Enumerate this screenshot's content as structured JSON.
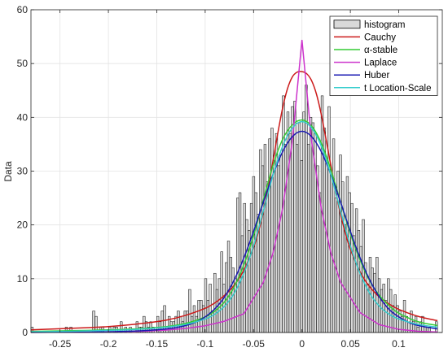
{
  "chart_data": {
    "type": "bar",
    "ylabel": "Data",
    "xlabel": "",
    "title": "",
    "xlim": [
      -0.28,
      0.145
    ],
    "ylim": [
      0,
      60
    ],
    "x_ticks": [
      -0.25,
      -0.2,
      -0.15,
      -0.1,
      -0.05,
      0,
      0.05,
      0.1
    ],
    "x_tick_labels": [
      "-0.25",
      "-0.2",
      "-0.15",
      "-0.1",
      "-0.05",
      "0",
      "0.05",
      "0.1"
    ],
    "y_ticks": [
      0,
      10,
      20,
      30,
      40,
      50,
      60
    ],
    "y_tick_labels": [
      "0",
      "10",
      "20",
      "30",
      "40",
      "50",
      "60"
    ],
    "grid": true,
    "legend_position": "top-right",
    "histogram": {
      "name": "histogram",
      "color": "#d9d9d9",
      "edge_color": "#000000",
      "bin_width": 0.00236,
      "bin_centers": [
        -0.2788,
        -0.2765,
        -0.2741,
        -0.2717,
        -0.2694,
        -0.267,
        -0.2647,
        -0.2623,
        -0.2599,
        -0.2576,
        -0.2552,
        -0.2529,
        -0.2505,
        -0.2481,
        -0.2458,
        -0.2434,
        -0.2411,
        -0.2387,
        -0.2363,
        -0.234,
        -0.2316,
        -0.2293,
        -0.2269,
        -0.2245,
        -0.2222,
        -0.2198,
        -0.2175,
        -0.2151,
        -0.2127,
        -0.2104,
        -0.208,
        -0.2057,
        -0.2033,
        -0.2009,
        -0.1986,
        -0.1962,
        -0.1939,
        -0.1915,
        -0.1891,
        -0.1868,
        -0.1844,
        -0.1821,
        -0.1797,
        -0.1773,
        -0.175,
        -0.1726,
        -0.1703,
        -0.1679,
        -0.1655,
        -0.1632,
        -0.1608,
        -0.1585,
        -0.1561,
        -0.1537,
        -0.1514,
        -0.149,
        -0.1467,
        -0.1443,
        -0.1419,
        -0.1396,
        -0.1372,
        -0.1349,
        -0.1325,
        -0.1301,
        -0.1278,
        -0.1254,
        -0.1231,
        -0.1207,
        -0.1183,
        -0.116,
        -0.1136,
        -0.1113,
        -0.1089,
        -0.1065,
        -0.1042,
        -0.1018,
        -0.0995,
        -0.0971,
        -0.0947,
        -0.0924,
        -0.09,
        -0.0877,
        -0.0853,
        -0.0829,
        -0.0806,
        -0.0782,
        -0.0759,
        -0.0735,
        -0.0711,
        -0.0688,
        -0.0664,
        -0.0641,
        -0.0617,
        -0.0593,
        -0.057,
        -0.0546,
        -0.0523,
        -0.0499,
        -0.0475,
        -0.0452,
        -0.0428,
        -0.0405,
        -0.0381,
        -0.0357,
        -0.0334,
        -0.031,
        -0.0287,
        -0.0263,
        -0.0239,
        -0.0216,
        -0.0192,
        -0.0169,
        -0.0145,
        -0.0121,
        -0.0098,
        -0.0074,
        -0.0051,
        -0.0027,
        -0.0003,
        0.002,
        0.0044,
        0.0067,
        0.0091,
        0.0115,
        0.0138,
        0.0162,
        0.0185,
        0.0209,
        0.0233,
        0.0256,
        0.028,
        0.0303,
        0.0327,
        0.0351,
        0.0374,
        0.0398,
        0.0421,
        0.0445,
        0.0469,
        0.0492,
        0.0516,
        0.0539,
        0.0563,
        0.0587,
        0.061,
        0.0634,
        0.0657,
        0.0681,
        0.0705,
        0.0728,
        0.0752,
        0.0775,
        0.0799,
        0.0823,
        0.0846,
        0.087,
        0.0893,
        0.0917,
        0.0941,
        0.0964,
        0.0988,
        0.1011,
        0.1035,
        0.1059,
        0.1082,
        0.1106,
        0.1129,
        0.1153,
        0.1177,
        0.12,
        0.1224,
        0.1247,
        0.1271,
        0.1295,
        0.1318,
        0.1342,
        0.1365,
        0.1389,
        0.1413,
        0.1436
      ],
      "counts": [
        1,
        0,
        0,
        0,
        0,
        0,
        0,
        0,
        0,
        0,
        0,
        0,
        0,
        0,
        0,
        1,
        0,
        1,
        0,
        0,
        0,
        0,
        0,
        0,
        0,
        0,
        0,
        4,
        3,
        0,
        1,
        1,
        0,
        0,
        1,
        0,
        1,
        1,
        0,
        2,
        0,
        1,
        0,
        1,
        0,
        0,
        2,
        1,
        1,
        3,
        2,
        1,
        2,
        1,
        0,
        3,
        2,
        4,
        5,
        1,
        3,
        2,
        2,
        3,
        4,
        3,
        2,
        4,
        4,
        8,
        3,
        5,
        3,
        6,
        6,
        5,
        10,
        6,
        9,
        4,
        11,
        8,
        10,
        15,
        9,
        13,
        17,
        14,
        12,
        10,
        25,
        26,
        18,
        24,
        21,
        19,
        24,
        29,
        26,
        22,
        34,
        31,
        35,
        28,
        36,
        38,
        32,
        37,
        31,
        33,
        44,
        35,
        41,
        37,
        42,
        43,
        35,
        39,
        32,
        41,
        46,
        35,
        40,
        39,
        37,
        31,
        26,
        44,
        38,
        32,
        42,
        30,
        36,
        25,
        30,
        33,
        28,
        20,
        29,
        26,
        24,
        18,
        23,
        19,
        16,
        21,
        13,
        9,
        14,
        12,
        11,
        14,
        10,
        8,
        9,
        6,
        10,
        8,
        5,
        7,
        5,
        4,
        3,
        6,
        3,
        2,
        4,
        2,
        3,
        1,
        2,
        3,
        1,
        1,
        1,
        0,
        0,
        2
      ]
    },
    "series": [
      {
        "name": "Cauchy",
        "color": "#cc1a1a",
        "x": [
          -0.28,
          -0.25,
          -0.22,
          -0.2,
          -0.18,
          -0.16,
          -0.14,
          -0.12,
          -0.1,
          -0.09,
          -0.08,
          -0.07,
          -0.06,
          -0.05,
          -0.045,
          -0.04,
          -0.035,
          -0.03,
          -0.025,
          -0.02,
          -0.015,
          -0.01,
          -0.005,
          0,
          0.005,
          0.01,
          0.015,
          0.02,
          0.025,
          0.03,
          0.035,
          0.04,
          0.045,
          0.05,
          0.06,
          0.07,
          0.08,
          0.09,
          0.1,
          0.12,
          0.14
        ],
        "y": [
          0.5,
          0.7,
          0.9,
          1.1,
          1.4,
          1.8,
          2.3,
          3.2,
          4.5,
          5.5,
          6.9,
          8.8,
          11.6,
          15.8,
          18.7,
          22.3,
          26.8,
          31.8,
          37.0,
          41.7,
          45.3,
          47.5,
          48.4,
          48.5,
          48.1,
          46.8,
          44.3,
          40.5,
          35.8,
          30.9,
          26.1,
          21.9,
          18.4,
          15.5,
          11.3,
          8.5,
          6.6,
          5.3,
          4.3,
          3.0,
          2.2
        ]
      },
      {
        "name": "α-stable",
        "color": "#33cc33",
        "x": [
          -0.28,
          -0.25,
          -0.22,
          -0.2,
          -0.18,
          -0.16,
          -0.14,
          -0.12,
          -0.1,
          -0.09,
          -0.08,
          -0.07,
          -0.06,
          -0.05,
          -0.04,
          -0.03,
          -0.02,
          -0.01,
          0,
          0.01,
          0.02,
          0.03,
          0.04,
          0.05,
          0.06,
          0.07,
          0.08,
          0.09,
          0.1,
          0.12,
          0.14
        ],
        "y": [
          0.2,
          0.3,
          0.4,
          0.5,
          0.6,
          0.8,
          1.1,
          1.7,
          2.9,
          4.0,
          5.7,
          8.5,
          12.6,
          18.0,
          24.6,
          31.0,
          35.9,
          38.6,
          39.5,
          38.4,
          35.2,
          30.2,
          24.2,
          18.4,
          13.5,
          9.6,
          6.9,
          5.0,
          3.6,
          2.0,
          1.3
        ]
      },
      {
        "name": "Laplace",
        "color": "#cc33cc",
        "x": [
          -0.28,
          -0.25,
          -0.22,
          -0.2,
          -0.18,
          -0.16,
          -0.14,
          -0.12,
          -0.1,
          -0.08,
          -0.06,
          -0.04,
          -0.03,
          -0.02,
          -0.01,
          0,
          0.01,
          0.02,
          0.03,
          0.04,
          0.06,
          0.08,
          0.1,
          0.12,
          0.14
        ],
        "y": [
          0.02,
          0.03,
          0.06,
          0.1,
          0.16,
          0.27,
          0.45,
          0.75,
          1.25,
          2.1,
          3.5,
          9.3,
          14.7,
          23.0,
          35.5,
          54.4,
          35.5,
          23.0,
          14.7,
          9.3,
          3.7,
          1.45,
          0.58,
          0.23,
          0.09
        ]
      },
      {
        "name": "Huber",
        "color": "#1a1ab3",
        "x": [
          -0.28,
          -0.25,
          -0.22,
          -0.2,
          -0.18,
          -0.16,
          -0.15,
          -0.14,
          -0.13,
          -0.12,
          -0.11,
          -0.1,
          -0.09,
          -0.08,
          -0.07,
          -0.06,
          -0.05,
          -0.04,
          -0.03,
          -0.02,
          -0.01,
          0,
          0.01,
          0.02,
          0.03,
          0.04,
          0.05,
          0.06,
          0.07,
          0.08,
          0.09,
          0.1,
          0.11,
          0.12,
          0.14
        ],
        "y": [
          0.02,
          0.04,
          0.08,
          0.13,
          0.22,
          0.38,
          0.5,
          0.66,
          0.9,
          1.3,
          1.9,
          2.9,
          4.4,
          6.6,
          9.8,
          13.9,
          18.8,
          24.2,
          29.3,
          33.6,
          36.4,
          37.4,
          36.4,
          33.6,
          29.3,
          24.2,
          18.8,
          13.9,
          9.8,
          6.6,
          4.3,
          2.9,
          1.9,
          1.3,
          0.66
        ]
      },
      {
        "name": "t Location-Scale",
        "color": "#33cccc",
        "x": [
          -0.28,
          -0.25,
          -0.22,
          -0.2,
          -0.18,
          -0.16,
          -0.14,
          -0.12,
          -0.1,
          -0.09,
          -0.08,
          -0.07,
          -0.06,
          -0.05,
          -0.04,
          -0.03,
          -0.02,
          -0.01,
          0,
          0.01,
          0.02,
          0.03,
          0.04,
          0.05,
          0.06,
          0.07,
          0.08,
          0.09,
          0.1,
          0.12,
          0.14
        ],
        "y": [
          0.15,
          0.2,
          0.3,
          0.4,
          0.5,
          0.7,
          1.0,
          1.5,
          2.5,
          3.4,
          4.9,
          7.3,
          11.0,
          16.1,
          22.5,
          29.2,
          34.6,
          38.0,
          39.2,
          38.0,
          34.6,
          29.2,
          22.5,
          16.1,
          11.0,
          7.3,
          4.9,
          3.4,
          2.5,
          1.5,
          1.0
        ]
      }
    ]
  }
}
